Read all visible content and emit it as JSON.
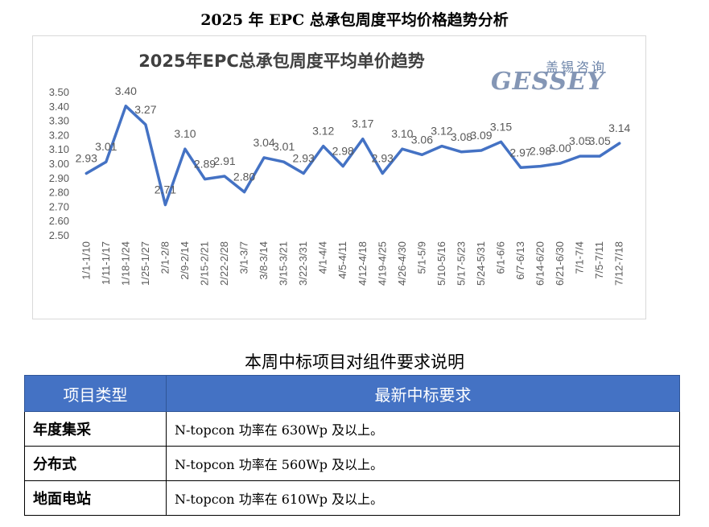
{
  "document": {
    "title": "2025 年 EPC 总承包周度平均价格趋势分析"
  },
  "logo": {
    "text_cn": "盖锡咨询",
    "text_en": "GESSEY"
  },
  "chart_data": {
    "type": "line",
    "title": "2025年EPC总承包周度平均单价趋势",
    "xlabel": "",
    "ylabel": "",
    "ylim": [
      2.5,
      3.5
    ],
    "yticks": [
      "2.50",
      "2.60",
      "2.70",
      "2.80",
      "2.90",
      "3.00",
      "3.10",
      "3.20",
      "3.30",
      "3.40",
      "3.50"
    ],
    "grid": false,
    "color": "#4472c4",
    "categories": [
      "1/1-1/10",
      "1/11-1/17",
      "1/18-1/24",
      "1/25-1/27",
      "2/1-2/8",
      "2/9-2/14",
      "2/15-2/21",
      "2/22-2/28",
      "3/1-3/7",
      "3/8-3/14",
      "3/15-3/21",
      "3/22-3/31",
      "4/1-4/4",
      "4/5-4/11",
      "4/12-4/18",
      "4/19-4/25",
      "4/26-4/30",
      "5/1-5/9",
      "5/10-5/16",
      "5/17-5/23",
      "5/24-5/31",
      "6/1-6/6",
      "6/7-6/13",
      "6/14-6/20",
      "6/21-6/30",
      "7/1-7/4",
      "7/5-7/11",
      "7/12-7/18"
    ],
    "values": [
      2.93,
      3.01,
      3.4,
      3.27,
      2.71,
      3.1,
      2.89,
      2.91,
      2.8,
      3.04,
      3.01,
      2.93,
      3.12,
      2.98,
      3.17,
      2.93,
      3.1,
      3.06,
      3.12,
      3.08,
      3.09,
      3.15,
      2.97,
      2.98,
      3.0,
      3.05,
      3.05,
      3.14
    ],
    "data_labels": [
      "2.93",
      "3.01",
      "3.40",
      "3.27",
      "2.71",
      "3.10",
      "2.89",
      "2.91",
      "2.80",
      "3.04",
      "3.01",
      "2.93",
      "3.12",
      "2.98",
      "3.17",
      "2.93",
      "3.10",
      "3.06",
      "3.12",
      "3.08",
      "3.09",
      "3.15",
      "2.97",
      "2.98",
      "3.00",
      "3.05",
      "3.05",
      "3.14"
    ]
  },
  "requirements": {
    "title": "本周中标项目对组件要求说明",
    "headers": [
      "项目类型",
      "最新中标要求"
    ],
    "rows": [
      {
        "type": "年度集采",
        "requirement": "N-topcon 功率在 630Wp 及以上。"
      },
      {
        "type": "分布式",
        "requirement": "N-topcon 功率在 560Wp 及以上。"
      },
      {
        "type": "地面电站",
        "requirement": "N-topcon 功率在 610Wp 及以上。"
      }
    ]
  }
}
